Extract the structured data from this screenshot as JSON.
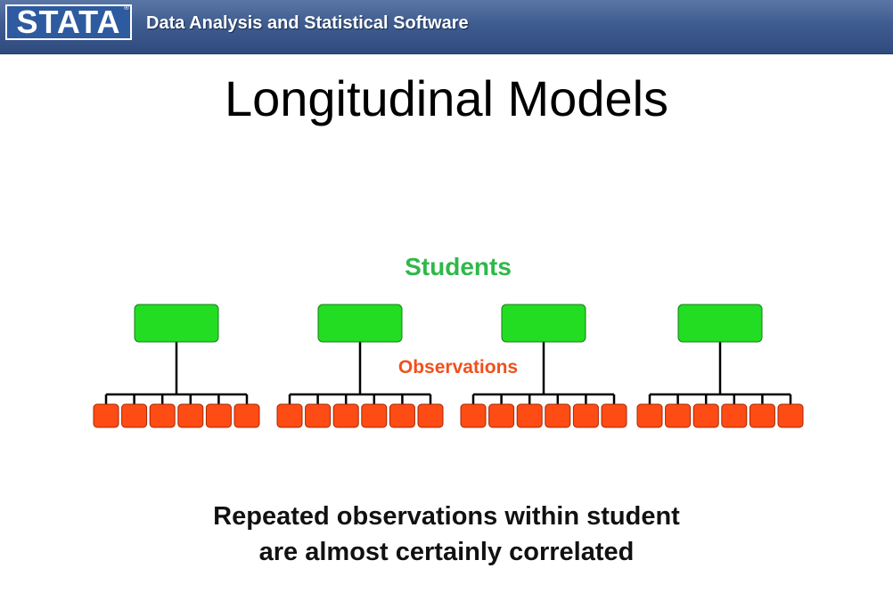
{
  "header": {
    "logo_text": "STATA",
    "logo_mark": "®",
    "tagline": "Data Analysis and Statistical Software"
  },
  "slide": {
    "title": "Longitudinal Models",
    "students_label": "Students",
    "observations_label": "Observations",
    "caption_line1": "Repeated observations within student",
    "caption_line2": "are almost certainly correlated"
  },
  "diagram": {
    "student_count": 4,
    "observations_per_student": 6
  },
  "colors": {
    "header_blue": "#3f5c90",
    "student_green": "#22dd22",
    "student_label_green": "#2fb84a",
    "observation_orange": "#ff4b14",
    "observation_label_orange": "#f0511c"
  }
}
